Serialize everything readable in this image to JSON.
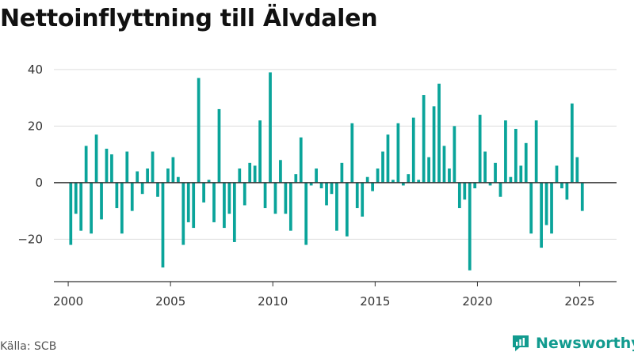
{
  "title": "Nettoinflyttning till Älvdalen",
  "source": "Källa: SCB",
  "brand": {
    "name": "Newsworthy",
    "icon": "newsworthy-logo-icon",
    "color": "#129b8f"
  },
  "colors": {
    "bar": "#0aa49a",
    "grid": "#dddddd",
    "axis": "#333333"
  },
  "chart_data": {
    "type": "bar",
    "title": "Nettoinflyttning till Älvdalen",
    "xlabel": "",
    "ylabel": "",
    "frequency": "quarterly",
    "start": "2000 Q1",
    "ylim": [
      -35,
      45
    ],
    "xlim": [
      1999.3,
      2026.8
    ],
    "yticks": [
      -20,
      0,
      20,
      40
    ],
    "ytick_labels": [
      "−20",
      "0",
      "20",
      "40"
    ],
    "xticks": [
      2000,
      2005,
      2010,
      2015,
      2020,
      2025
    ],
    "xtick_labels": [
      "2000",
      "2005",
      "2010",
      "2015",
      "2020",
      "2025"
    ],
    "grid": true,
    "legend": "none",
    "values": [
      -22,
      -11,
      -17,
      13,
      -18,
      17,
      -13,
      12,
      10,
      -9,
      -18,
      11,
      -10,
      4,
      -4,
      5,
      11,
      -5,
      -30,
      5,
      9,
      2,
      -22,
      -14,
      -16,
      37,
      -7,
      1,
      -14,
      26,
      -16,
      -11,
      -21,
      5,
      -8,
      7,
      6,
      22,
      -9,
      39,
      -11,
      8,
      -11,
      -17,
      3,
      16,
      -22,
      -1,
      5,
      -2,
      -8,
      -4,
      -17,
      7,
      -19,
      21,
      -9,
      -12,
      2,
      -3,
      5,
      11,
      17,
      1,
      21,
      -1,
      3,
      23,
      1,
      31,
      9,
      27,
      35,
      13,
      5,
      20,
      -9,
      -6,
      -31,
      -2,
      24,
      11,
      -1,
      7,
      -5,
      22,
      2,
      19,
      6,
      14,
      -18,
      22,
      -23,
      -15,
      -18,
      6,
      -2,
      -6,
      28,
      9,
      -10
    ]
  }
}
